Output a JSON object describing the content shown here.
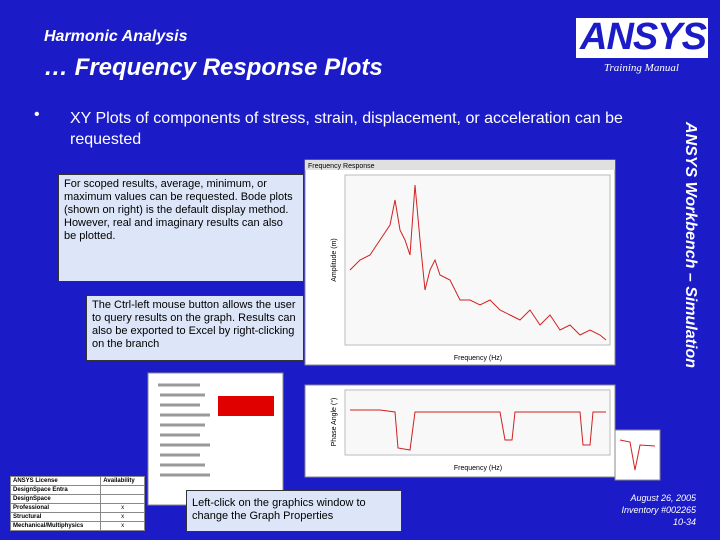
{
  "header": {
    "title": "Harmonic Analysis",
    "subtitle": "… Frequency Response Plots",
    "logo": "ANSYS",
    "training": "Training Manual"
  },
  "sidebar": "ANSYS Workbench – Simulation",
  "bullet": "XY Plots of components of stress, strain, displacement, or acceleration can be requested",
  "callouts": [
    "For scoped results, average, minimum, or maximum values can be requested. Bode plots (shown on right) is the default display method.  However, real and imaginary results can also be plotted.",
    "The Ctrl-left mouse button allows the user to query results on the graph. Results can also be exported to Excel by right-clicking on the branch",
    "Left-click on the graphics window to change the Graph Properties"
  ],
  "plot": {
    "title": "Frequency Response",
    "amplitude_label": "Amplitude (m)",
    "phase_label": "Phase Angle (°)",
    "x_label": "Frequency (Hz)"
  },
  "license_table": {
    "headers": [
      "ANSYS License",
      "Availability"
    ],
    "rows": [
      [
        "DesignSpace Entra"
      ],
      [
        "DesignSpace"
      ],
      [
        "Professional",
        "x"
      ],
      [
        "Structural",
        "x"
      ],
      [
        "Mechanical/Multiphysics",
        "x"
      ]
    ]
  },
  "footer": {
    "date": "August 26, 2005",
    "inventory": "Inventory #002265",
    "page": "10-34"
  }
}
